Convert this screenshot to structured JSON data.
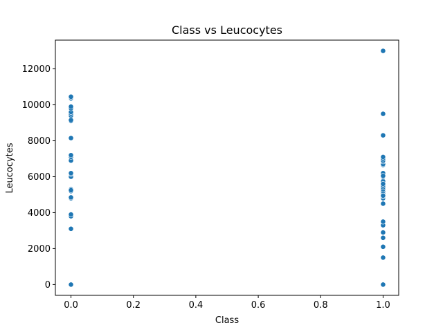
{
  "chart_data": {
    "type": "scatter",
    "title": "Class vs Leucocytes",
    "xlabel": "Class",
    "ylabel": "Leucocytes",
    "xlim": [
      -0.05,
      1.05
    ],
    "ylim": [
      -600,
      13600
    ],
    "xticks": [
      0.0,
      0.2,
      0.4,
      0.6,
      0.8,
      1.0
    ],
    "xtick_labels": [
      "0.0",
      "0.2",
      "0.4",
      "0.6",
      "0.8",
      "1.0"
    ],
    "yticks": [
      0,
      2000,
      4000,
      6000,
      8000,
      10000,
      12000
    ],
    "ytick_labels": [
      "0",
      "2000",
      "4000",
      "6000",
      "8000",
      "10000",
      "12000"
    ],
    "grid": false,
    "marker_color": "#1f77b4",
    "series": [
      {
        "x": [
          0,
          0,
          0,
          0,
          0,
          0,
          0,
          0,
          0,
          0,
          0,
          0,
          0,
          0,
          0,
          0,
          0,
          0,
          0,
          0,
          0,
          0,
          0,
          0,
          0,
          0,
          1,
          1,
          1,
          1,
          1,
          1,
          1,
          1,
          1,
          1,
          1,
          1,
          1,
          1,
          1,
          1,
          1,
          1,
          1,
          1,
          1,
          1,
          1,
          1,
          1,
          1,
          1,
          1,
          1,
          1,
          1,
          1
        ],
        "y": [
          0,
          3100,
          3800,
          3900,
          4800,
          4850,
          5200,
          5300,
          6000,
          6150,
          6200,
          6900,
          7100,
          7200,
          8150,
          9100,
          9150,
          9400,
          9500,
          9600,
          9800,
          9900,
          10350,
          10400,
          10450,
          5250,
          0,
          1500,
          2100,
          2600,
          2900,
          3300,
          3500,
          4500,
          4800,
          4900,
          5100,
          5200,
          5300,
          5400,
          5500,
          5700,
          5750,
          6000,
          6150,
          6200,
          6650,
          6700,
          6850,
          6900,
          7000,
          7100,
          8300,
          9500,
          13000,
          5600,
          6050,
          4950
        ]
      }
    ]
  }
}
